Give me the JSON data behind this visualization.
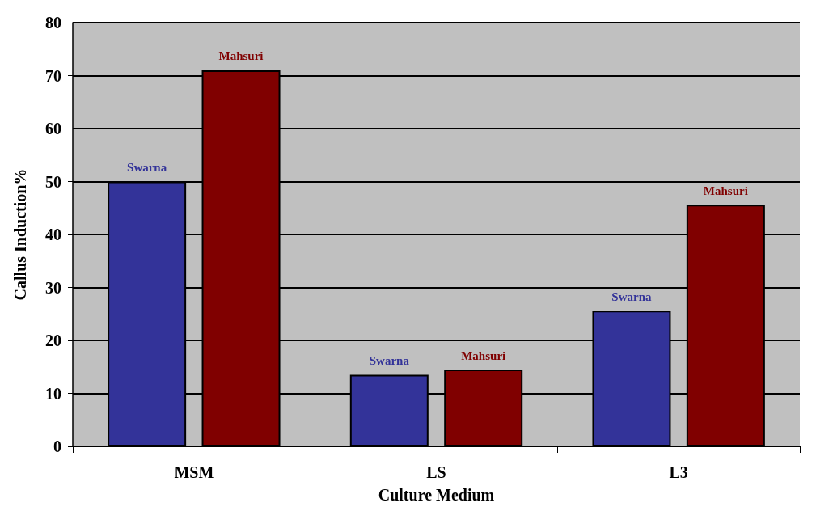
{
  "chart_data": {
    "type": "bar",
    "xlabel": "Culture Medium",
    "ylabel": "Callus Induction%",
    "categories": [
      "MSM",
      "LS",
      "L3"
    ],
    "series": [
      {
        "name": "Swarna",
        "color": "#333399",
        "values": [
          50,
          13.5,
          25.6
        ]
      },
      {
        "name": "Mahsuri",
        "color": "#800000",
        "values": [
          71,
          14.5,
          45.6
        ]
      }
    ],
    "ylim": [
      0,
      80
    ],
    "yticks": [
      0,
      10,
      20,
      30,
      40,
      50,
      60,
      70,
      80
    ],
    "grid": "y",
    "legend": false
  }
}
